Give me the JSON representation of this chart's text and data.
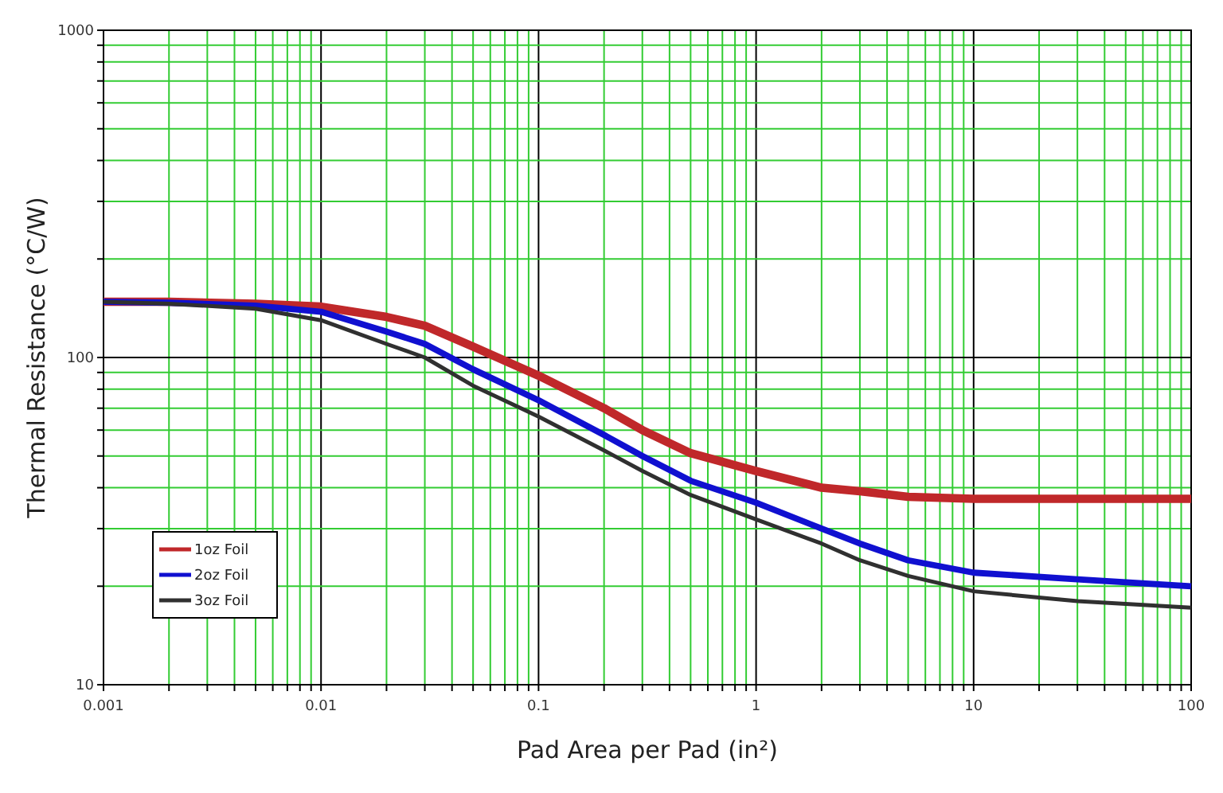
{
  "chart_data": {
    "type": "line",
    "xlabel": "Pad Area per Pad (in²)",
    "ylabel": "Thermal Resistance (°C/W)",
    "log": "xy",
    "grid": true,
    "legend": "bottom left",
    "marker": "none",
    "line_style": "solid",
    "xlim": [
      0.001,
      100
    ],
    "ylim": [
      10,
      1000
    ],
    "xticks": [
      0.001,
      {
        "value": 0.002,
        "label": null
      },
      {
        "value": 0.003,
        "label": null
      },
      {
        "value": 0.004,
        "label": null
      },
      {
        "value": 0.005,
        "label": null
      },
      {
        "value": 0.006,
        "label": null
      },
      {
        "value": 0.007,
        "label": null
      },
      {
        "value": 0.008,
        "label": null
      },
      {
        "value": 0.009,
        "label": null
      },
      0.01,
      {
        "value": 0.02,
        "label": null
      },
      {
        "value": 0.03,
        "label": null
      },
      {
        "value": 0.04,
        "label": null
      },
      {
        "value": 0.05,
        "label": null
      },
      {
        "value": 0.06,
        "label": null
      },
      {
        "value": 0.07,
        "label": null
      },
      {
        "value": 0.08,
        "label": null
      },
      {
        "value": 0.09,
        "label": null
      },
      0.1,
      {
        "value": 0.2,
        "label": null
      },
      {
        "value": 0.3,
        "label": null
      },
      {
        "value": 0.4,
        "label": null
      },
      {
        "value": 0.5,
        "label": null
      },
      {
        "value": 0.6,
        "label": null
      },
      {
        "value": 0.7,
        "label": null
      },
      {
        "value": 0.8,
        "label": null
      },
      {
        "value": 0.9,
        "label": null
      },
      1,
      {
        "value": 2,
        "label": null
      },
      {
        "value": 3,
        "label": null
      },
      {
        "value": 4,
        "label": null
      },
      {
        "value": 5,
        "label": null
      },
      {
        "value": 6,
        "label": null
      },
      {
        "value": 7,
        "label": null
      },
      {
        "value": 8,
        "label": null
      },
      {
        "value": 9,
        "label": null
      },
      10,
      {
        "value": 20,
        "label": null
      },
      {
        "value": 30,
        "label": null
      },
      {
        "value": 40,
        "label": null
      },
      {
        "value": 50,
        "label": null
      },
      {
        "value": 60,
        "label": null
      },
      {
        "value": 70,
        "label": null
      },
      {
        "value": 80,
        "label": null
      },
      {
        "value": 90,
        "label": null
      },
      100
    ],
    "yticks": [
      10,
      {
        "value": 20,
        "label": null
      },
      {
        "value": 30,
        "label": null
      },
      {
        "value": 40,
        "label": null
      },
      {
        "value": 50,
        "label": null
      },
      {
        "value": 60,
        "label": null
      },
      {
        "value": 70,
        "label": null
      },
      {
        "value": 80,
        "label": null
      },
      {
        "value": 90,
        "label": null
      },
      100,
      {
        "value": 200,
        "label": null
      },
      {
        "value": 300,
        "label": null
      },
      {
        "value": 400,
        "label": null
      },
      {
        "value": 500,
        "label": null
      },
      {
        "value": 600,
        "label": null
      },
      {
        "value": 700,
        "label": null
      },
      {
        "value": 800,
        "label": null
      },
      {
        "value": 900,
        "label": null
      },
      1000
    ],
    "x": [
      0.001,
      0.002,
      0.005,
      0.01,
      0.02,
      0.03,
      0.05,
      0.1,
      0.2,
      0.3,
      0.5,
      1,
      2,
      3,
      5,
      10,
      30,
      100
    ],
    "series": [
      {
        "name": "1oz Foil",
        "color": "#c0282a",
        "values": [
          148,
          148,
          146,
          143,
          133,
          125,
          108,
          88,
          70,
          60,
          51,
          45,
          40,
          39,
          37.5,
          37,
          37,
          37
        ]
      },
      {
        "name": "2oz Foil",
        "color": "#1010d0",
        "values": [
          148,
          147,
          144,
          138,
          120,
          110,
          92,
          74,
          58,
          50,
          42,
          36,
          30,
          27,
          24,
          22,
          21,
          20
        ]
      },
      {
        "name": "3oz Foil",
        "color": "#303030",
        "values": [
          148,
          146,
          141,
          130,
          110,
          100,
          82,
          66,
          52,
          45,
          38,
          32,
          27,
          24,
          21.5,
          19.3,
          18,
          17.2
        ]
      }
    ]
  }
}
